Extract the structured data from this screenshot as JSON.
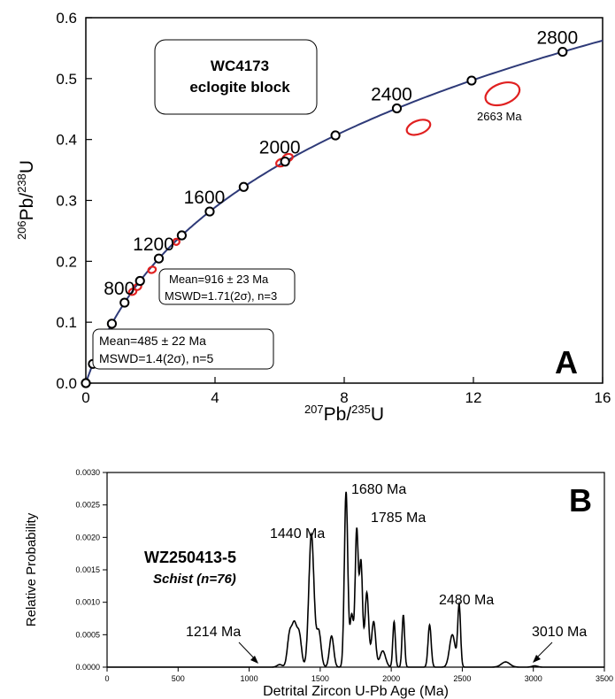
{
  "colors": {
    "concordia": "#2e3a78",
    "ellipse": "#e02020",
    "axis": "#000000",
    "curve": "#000000"
  },
  "chart_data": [
    {
      "type": "line",
      "subtype": "concordia",
      "panel_label": "A",
      "xlabel": {
        "sup1": "207",
        "b1": "Pb/",
        "sup2": "235",
        "b2": "U"
      },
      "ylabel": {
        "sup1": "206",
        "b1": "Pb/",
        "sup2": "238",
        "b2": "U"
      },
      "xlim": [
        0,
        16
      ],
      "ylim": [
        0,
        0.6
      ],
      "xticks": [
        "0",
        "4",
        "8",
        "12",
        "16"
      ],
      "yticks": [
        "0.0",
        "0.1",
        "0.2",
        "0.3",
        "0.4",
        "0.5",
        "0.6"
      ],
      "sample_box": {
        "line1": "WC4173",
        "line2": "eclogite block"
      },
      "marker_ages_ma": [
        0,
        200,
        400,
        600,
        800,
        1000,
        1200,
        1400,
        1600,
        1800,
        2000,
        2200,
        2400,
        2600,
        2800
      ],
      "age_labels": [
        "800",
        "1200",
        "1600",
        "2000",
        "2400",
        "2800"
      ],
      "age_label_values_ma": [
        800,
        1200,
        1600,
        2000,
        2400,
        2800
      ],
      "annotations": [
        {
          "line1": "Mean=916 ± 23 Ma",
          "line2": "MSWD=1.71(2σ), n=3"
        },
        {
          "line1": "Mean=485 ± 22 Ma",
          "line2": "MSWD=1.4(2σ), n=5"
        }
      ],
      "ellipse_label": "2663 Ma",
      "ellipses": [
        {
          "x": 0.62,
          "y": 0.078,
          "rx": 0.09,
          "ry": 0.004
        },
        {
          "x": 1.45,
          "y": 0.15,
          "rx": 0.12,
          "ry": 0.005
        },
        {
          "x": 1.6,
          "y": 0.158,
          "rx": 0.12,
          "ry": 0.005
        },
        {
          "x": 2.05,
          "y": 0.186,
          "rx": 0.12,
          "ry": 0.005
        },
        {
          "x": 2.8,
          "y": 0.232,
          "rx": 0.1,
          "ry": 0.005
        },
        {
          "x": 6.05,
          "y": 0.362,
          "rx": 0.16,
          "ry": 0.006
        },
        {
          "x": 6.25,
          "y": 0.37,
          "rx": 0.16,
          "ry": 0.006
        },
        {
          "x": 10.3,
          "y": 0.42,
          "rx": 0.38,
          "ry": 0.011
        },
        {
          "x": 12.9,
          "y": 0.475,
          "rx": 0.55,
          "ry": 0.017
        }
      ]
    },
    {
      "type": "line",
      "subtype": "probability-density",
      "panel_label": "B",
      "xlabel": "Detrital Zircon U-Pb Age (Ma)",
      "ylabel": "Relative Probability",
      "xlim": [
        0,
        3500
      ],
      "ylim": [
        0,
        0.003
      ],
      "xticks": [
        "0",
        "500",
        "1000",
        "1500",
        "2000",
        "2500",
        "3000",
        "3500"
      ],
      "yticks": [
        "0.0000",
        "0.0005",
        "0.0010",
        "0.0015",
        "0.0020",
        "0.0025",
        "0.0030"
      ],
      "sample": {
        "name": "WZ250413-5",
        "description": "Schist (n=76)"
      },
      "peak_labels": [
        "1440 Ma",
        "1680 Ma",
        "1785 Ma",
        "2480 Ma",
        "1214 Ma",
        "3010 Ma"
      ],
      "peaks": [
        {
          "age": 1215,
          "height": 4e-05,
          "width": 18
        },
        {
          "age": 1285,
          "height": 0.0005,
          "width": 16
        },
        {
          "age": 1318,
          "height": 0.0006,
          "width": 16
        },
        {
          "age": 1352,
          "height": 0.0005,
          "width": 16
        },
        {
          "age": 1438,
          "height": 0.00205,
          "width": 18
        },
        {
          "age": 1490,
          "height": 0.00055,
          "width": 16
        },
        {
          "age": 1580,
          "height": 0.00048,
          "width": 15
        },
        {
          "age": 1682,
          "height": 0.0027,
          "width": 12
        },
        {
          "age": 1722,
          "height": 0.0008,
          "width": 12
        },
        {
          "age": 1757,
          "height": 0.0021,
          "width": 11
        },
        {
          "age": 1787,
          "height": 0.0016,
          "width": 11
        },
        {
          "age": 1828,
          "height": 0.00115,
          "width": 13
        },
        {
          "age": 1876,
          "height": 0.0007,
          "width": 14
        },
        {
          "age": 1940,
          "height": 0.00025,
          "width": 20
        },
        {
          "age": 2020,
          "height": 0.0007,
          "width": 9
        },
        {
          "age": 2085,
          "height": 0.0008,
          "width": 9
        },
        {
          "age": 2270,
          "height": 0.00065,
          "width": 11
        },
        {
          "age": 2430,
          "height": 0.0005,
          "width": 20
        },
        {
          "age": 2478,
          "height": 0.00095,
          "width": 10
        },
        {
          "age": 2805,
          "height": 8e-05,
          "width": 30
        },
        {
          "age": 3010,
          "height": 2e-05,
          "width": 20
        }
      ]
    }
  ]
}
